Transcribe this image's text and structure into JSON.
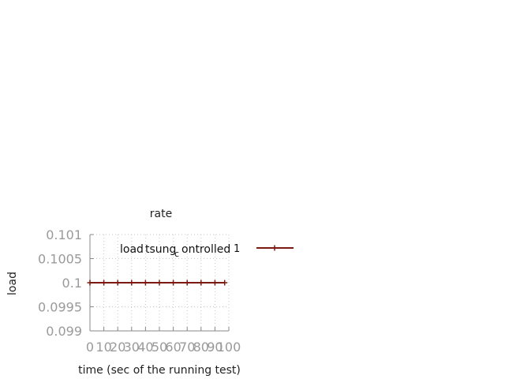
{
  "chart_data": {
    "type": "line",
    "title": "rate",
    "xlabel": "time (sec of the running test)",
    "ylabel": "load",
    "xlim": [
      0,
      100
    ],
    "ylim": [
      0.099,
      0.101
    ],
    "x_ticks": [
      "0",
      "10",
      "20",
      "30",
      "40",
      "50",
      "60",
      "70",
      "80",
      "90",
      "100"
    ],
    "y_ticks": [
      "0.101",
      "0.1005",
      "0.1",
      "0.0995",
      "0.099"
    ],
    "grid": true,
    "legend": "top-right",
    "legend_label_parts": {
      "before": "load",
      "overlay": "tsung",
      "sub": "c",
      "after": "ontrolled",
      "overlay_end": "1"
    },
    "series": [
      {
        "name": "load tsung_controlled 1",
        "color": "#7a1a10",
        "x": [
          0,
          10,
          20,
          30,
          40,
          50,
          60,
          70,
          80,
          90,
          97
        ],
        "y": [
          0.1,
          0.1,
          0.1,
          0.1,
          0.1,
          0.1,
          0.1,
          0.1,
          0.1,
          0.1,
          0.1
        ]
      }
    ]
  }
}
